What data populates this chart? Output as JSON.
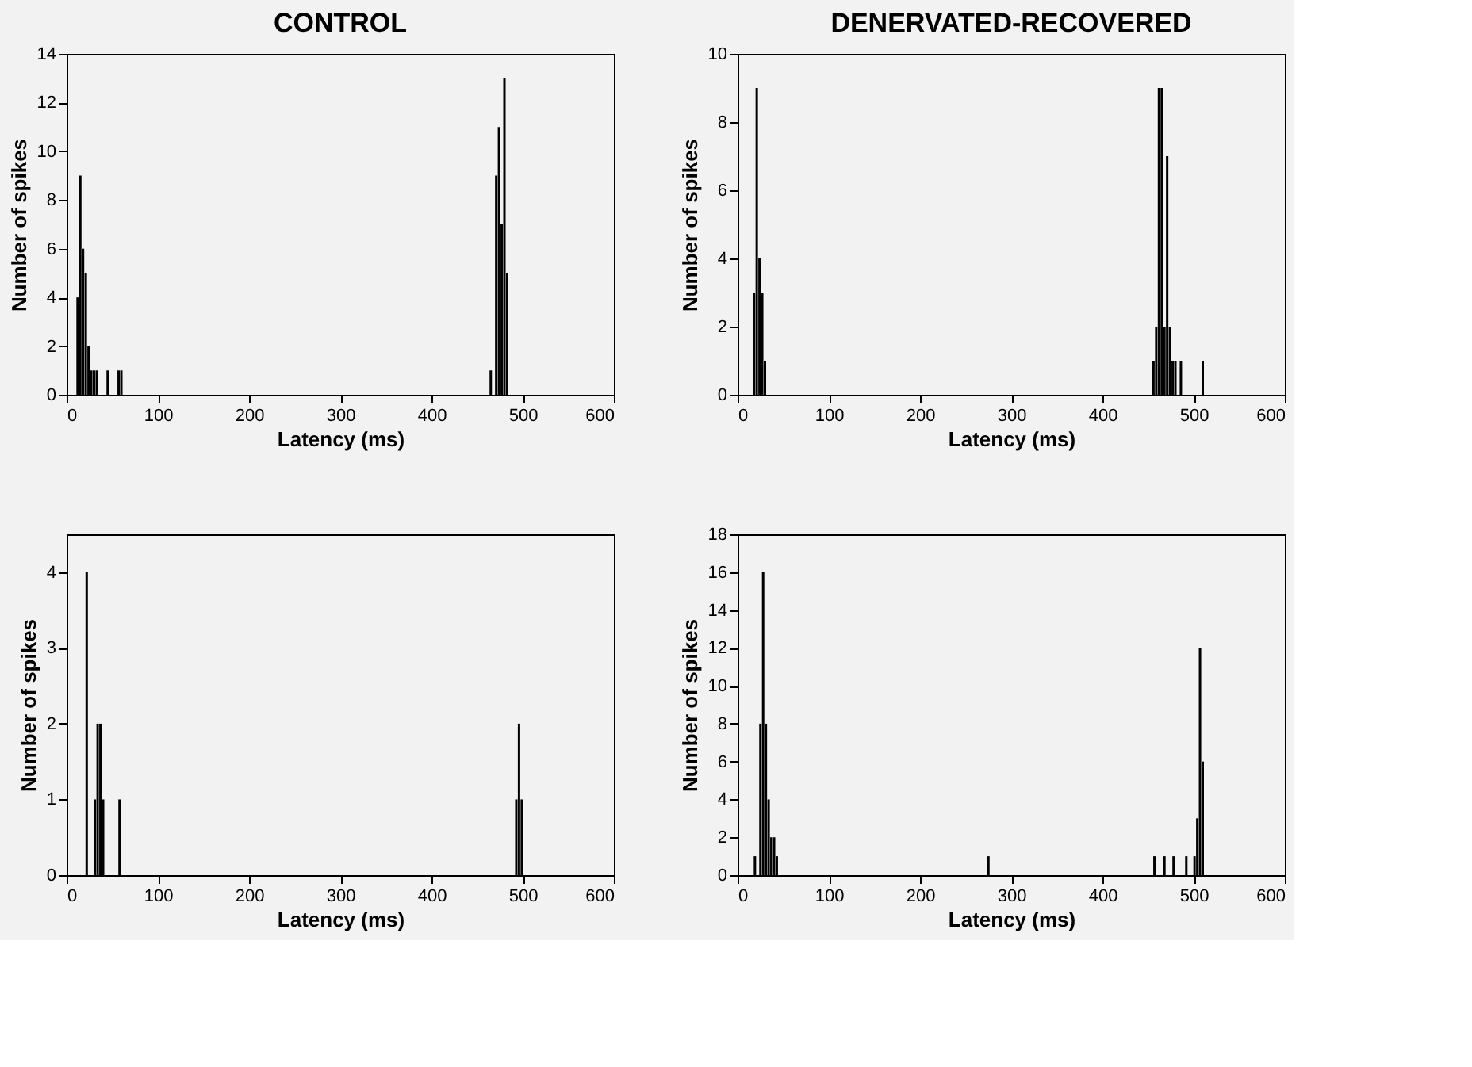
{
  "chart_data": [
    {
      "type": "bar",
      "title": "CONTROL",
      "xlabel": "Latency (ms)",
      "ylabel": "Number of spikes",
      "xlim": [
        0,
        600
      ],
      "xticks": [
        0,
        100,
        200,
        300,
        400,
        500,
        600
      ],
      "ylim": [
        0,
        14
      ],
      "yticks": [
        0,
        2,
        4,
        6,
        8,
        10,
        12,
        14
      ],
      "grid": false,
      "x": [
        12,
        15,
        18,
        21,
        24,
        27,
        30,
        33,
        45,
        57,
        60,
        465,
        471,
        474,
        477,
        480,
        483
      ],
      "series": [
        {
          "color": "#000000",
          "values": [
            4,
            9,
            6,
            5,
            2,
            1,
            1,
            1,
            1,
            1,
            1,
            1,
            9,
            11,
            7,
            13,
            5
          ]
        }
      ]
    },
    {
      "type": "bar",
      "title": "DENERVATED-RECOVERED",
      "xlabel": "Latency (ms)",
      "ylabel": "Number of spikes",
      "xlim": [
        0,
        600
      ],
      "xticks": [
        0,
        100,
        200,
        300,
        400,
        500,
        600
      ],
      "ylim": [
        0,
        10
      ],
      "yticks": [
        0,
        2,
        4,
        6,
        8,
        10
      ],
      "grid": false,
      "x": [
        18,
        21,
        24,
        27,
        30,
        456,
        459,
        462,
        465,
        468,
        471,
        474,
        477,
        480,
        486,
        510
      ],
      "series": [
        {
          "color": "#000000",
          "values": [
            3,
            9,
            4,
            3,
            1,
            1,
            2,
            9,
            9,
            2,
            7,
            2,
            1,
            1,
            1,
            1
          ]
        }
      ]
    },
    {
      "type": "bar",
      "xlabel": "Latency (ms)",
      "ylabel": "Number of spikes",
      "xlim": [
        0,
        600
      ],
      "xticks": [
        0,
        100,
        200,
        300,
        400,
        500,
        600
      ],
      "ylim": [
        0,
        4.5
      ],
      "yticks": [
        0,
        1,
        2,
        3,
        4
      ],
      "grid": false,
      "x": [
        22,
        31,
        34,
        37,
        40,
        58,
        493,
        496,
        499
      ],
      "series": [
        {
          "color": "#000000",
          "values": [
            4,
            1,
            2,
            2,
            1,
            1,
            1,
            2,
            1
          ]
        }
      ]
    },
    {
      "type": "bar",
      "xlabel": "Latency (ms)",
      "ylabel": "Number of spikes",
      "xlim": [
        0,
        600
      ],
      "xticks": [
        0,
        100,
        200,
        300,
        400,
        500,
        600
      ],
      "ylim": [
        0,
        18
      ],
      "yticks": [
        0,
        2,
        4,
        6,
        8,
        10,
        12,
        14,
        16,
        18
      ],
      "grid": false,
      "x": [
        19,
        25,
        28,
        31,
        34,
        37,
        40,
        43,
        275,
        457,
        468,
        478,
        492,
        501,
        504,
        507,
        510
      ],
      "series": [
        {
          "color": "#000000",
          "values": [
            1,
            8,
            16,
            8,
            4,
            2,
            2,
            1,
            1,
            1,
            1,
            1,
            1,
            1,
            3,
            12,
            6
          ]
        }
      ]
    }
  ]
}
